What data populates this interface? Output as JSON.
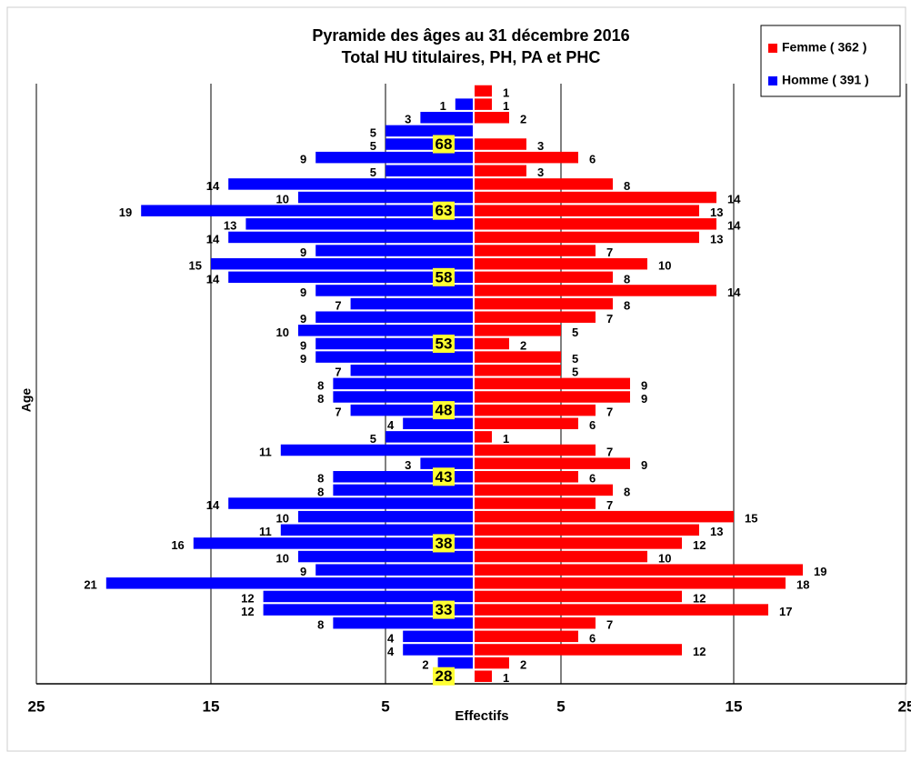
{
  "chart_data": {
    "type": "pyramid",
    "title": "Pyramide des âges au 31 décembre 2016",
    "subtitle": "Total HU titulaires, PH, PA et PHC",
    "y_label": "Age",
    "x_label": "Effectifs",
    "categories": [
      null,
      null,
      null,
      null,
      68,
      null,
      null,
      null,
      null,
      63,
      null,
      null,
      null,
      null,
      58,
      null,
      null,
      null,
      null,
      53,
      null,
      null,
      null,
      null,
      48,
      null,
      null,
      null,
      null,
      43,
      null,
      null,
      null,
      null,
      38,
      null,
      null,
      null,
      null,
      33,
      null,
      null,
      null,
      null,
      28
    ],
    "series": [
      {
        "name": "Femme ( 362 )",
        "color": "#ff0000",
        "side": "right",
        "values": [
          1,
          1,
          2,
          0,
          3,
          6,
          3,
          8,
          14,
          13,
          14,
          13,
          7,
          10,
          8,
          14,
          8,
          7,
          5,
          2,
          5,
          5,
          9,
          9,
          7,
          6,
          1,
          7,
          9,
          6,
          8,
          7,
          15,
          13,
          12,
          10,
          19,
          18,
          12,
          17,
          7,
          6,
          12,
          2,
          1
        ]
      },
      {
        "name": "Homme ( 391 )",
        "color": "#0000ff",
        "side": "left",
        "values": [
          0,
          1,
          3,
          5,
          5,
          9,
          5,
          14,
          10,
          19,
          13,
          14,
          9,
          15,
          14,
          9,
          7,
          9,
          10,
          9,
          9,
          7,
          8,
          8,
          7,
          4,
          5,
          11,
          3,
          8,
          8,
          14,
          10,
          11,
          16,
          10,
          9,
          21,
          12,
          12,
          8,
          4,
          4,
          2,
          0
        ]
      }
    ],
    "xlim": [
      0,
      25
    ],
    "xticks": [
      5,
      15,
      25
    ],
    "grid": true
  }
}
